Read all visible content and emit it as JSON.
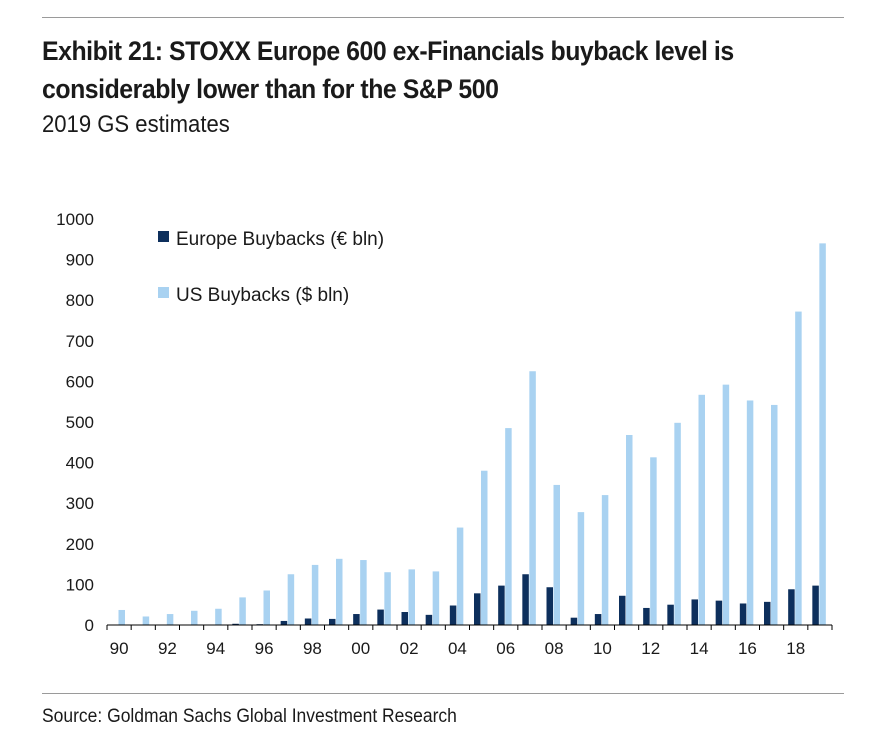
{
  "header": {
    "title": "Exhibit 21: STOXX Europe 600 ex-Financials buyback level is considerably lower than for the S&P 500",
    "subtitle": "2019 GS estimates"
  },
  "footer": {
    "source": "Source: Goldman Sachs Global Investment Research"
  },
  "colors": {
    "europe": "#0d2f5c",
    "us": "#a9d2f1",
    "axis": "#000000",
    "rule": "#9a9a9a"
  },
  "chart_data": {
    "type": "bar",
    "title": "Exhibit 21: STOXX Europe 600 ex-Financials buyback level is considerably lower than for the S&P 500",
    "subtitle": "2019 GS estimates",
    "xlabel": "",
    "ylabel": "",
    "ylim": [
      0,
      1000
    ],
    "yticks": [
      "0",
      "100",
      "200",
      "300",
      "400",
      "500",
      "600",
      "700",
      "800",
      "900",
      "1000"
    ],
    "categories": [
      "90",
      "91",
      "92",
      "93",
      "94",
      "95",
      "96",
      "97",
      "98",
      "99",
      "00",
      "01",
      "02",
      "03",
      "04",
      "05",
      "06",
      "07",
      "08",
      "09",
      "10",
      "11",
      "12",
      "13",
      "14",
      "15",
      "16",
      "17",
      "18",
      "19"
    ],
    "xticks": [
      "90",
      "92",
      "94",
      "96",
      "98",
      "00",
      "02",
      "04",
      "06",
      "08",
      "10",
      "12",
      "14",
      "16",
      "18"
    ],
    "legend": {
      "position": "top-left",
      "labels": [
        "Europe Buybacks (€ bln)",
        "US Buybacks ($ bln)"
      ]
    },
    "series": [
      {
        "name": "Europe Buybacks (€ bln)",
        "values": [
          0,
          0,
          0,
          0,
          0,
          3,
          2,
          10,
          16,
          15,
          27,
          38,
          32,
          25,
          48,
          78,
          97,
          125,
          93,
          18,
          27,
          72,
          42,
          50,
          63,
          60,
          53,
          57,
          88,
          97
        ]
      },
      {
        "name": "US Buybacks ($ bln)",
        "values": [
          37,
          21,
          27,
          35,
          40,
          68,
          85,
          125,
          148,
          163,
          160,
          130,
          137,
          132,
          240,
          380,
          485,
          625,
          345,
          278,
          320,
          468,
          413,
          498,
          567,
          592,
          553,
          542,
          772,
          940
        ]
      }
    ]
  }
}
